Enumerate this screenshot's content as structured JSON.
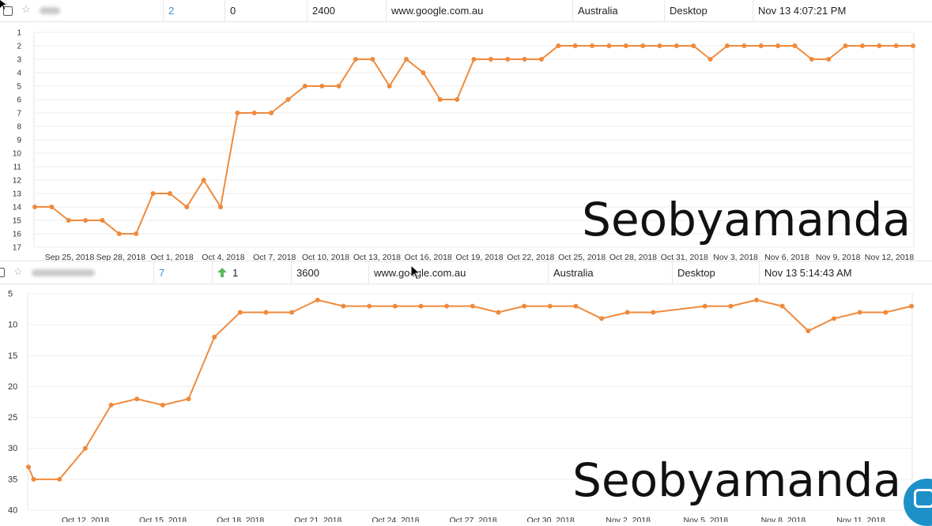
{
  "rows": [
    {
      "keyword_hidden": true,
      "rank": "2",
      "change": "0",
      "change_arrow": false,
      "search_volume": "2400",
      "search_engine": "www.google.com.au",
      "location": "Australia",
      "device": "Desktop",
      "updated": "Nov 13 4:07:21 PM"
    },
    {
      "keyword_hidden": true,
      "rank": "7",
      "change": "1",
      "change_arrow": true,
      "search_volume": "3600",
      "search_engine": "www.google.com.au",
      "location": "Australia",
      "device": "Desktop",
      "updated": "Nov 13 5:14:43 AM"
    }
  ],
  "watermark": "Seobyamanda",
  "colors": {
    "line": "#ef8a3c",
    "up_arrow": "#5cb85c",
    "rank_link": "#3a8fd6",
    "grid": "#eeeeee"
  },
  "icons": [
    "checkbox-icon",
    "star-icon",
    "up-arrow-icon",
    "mouse-cursor-icon",
    "chat-icon"
  ],
  "chart_data": [
    {
      "type": "line",
      "y_reversed": true,
      "ylim": [
        1,
        17
      ],
      "yticks": [
        1,
        2,
        3,
        4,
        5,
        6,
        7,
        8,
        9,
        10,
        11,
        12,
        13,
        14,
        15,
        16,
        17
      ],
      "x_tick_labels": [
        "Sep 25, 2018",
        "Sep 28, 2018",
        "Oct 1, 2018",
        "Oct 4, 2018",
        "Oct 7, 2018",
        "Oct 10, 2018",
        "Oct 13, 2018",
        "Oct 16, 2018",
        "Oct 19, 2018",
        "Oct 22, 2018",
        "Oct 25, 2018",
        "Oct 28, 2018",
        "Oct 31, 2018",
        "Nov 3, 2018",
        "Nov 6, 2018",
        "Nov 9, 2018",
        "Nov 12, 2018"
      ],
      "grid": true,
      "series": [
        {
          "values": [
            14,
            14,
            15,
            15,
            15,
            16,
            16,
            13,
            13,
            14,
            12,
            14,
            7,
            7,
            7,
            6,
            5,
            5,
            5,
            3,
            3,
            5,
            3,
            4,
            6,
            6,
            3,
            3,
            3,
            3,
            3,
            2,
            2,
            2,
            2,
            2,
            2,
            2,
            2,
            2,
            3,
            2,
            2,
            2,
            2,
            2,
            3,
            3,
            2,
            2,
            2,
            2,
            2
          ]
        }
      ]
    },
    {
      "type": "line",
      "y_reversed": true,
      "ylim": [
        5,
        40
      ],
      "yticks": [
        5,
        10,
        15,
        20,
        25,
        30,
        35,
        40
      ],
      "x_tick_labels": [
        "Oct 12, 2018",
        "Oct 15, 2018",
        "Oct 18, 2018",
        "Oct 21, 2018",
        "Oct 24, 2018",
        "Oct 27, 2018",
        "Oct 30, 2018",
        "Nov 2, 2018",
        "Nov 5, 2018",
        "Nov 8, 2018",
        "Nov 11, 2018"
      ],
      "grid": true,
      "series": [
        {
          "points": [
            [
              0,
              33
            ],
            [
              0.2,
              35
            ],
            [
              1.2,
              35
            ],
            [
              2.2,
              30
            ],
            [
              3.2,
              23
            ],
            [
              4.2,
              22
            ],
            [
              5.2,
              23
            ],
            [
              6.2,
              22
            ],
            [
              7.2,
              12
            ],
            [
              8.2,
              8
            ],
            [
              9.2,
              8
            ],
            [
              10.2,
              8
            ],
            [
              11.2,
              6
            ],
            [
              12.2,
              7
            ],
            [
              13.2,
              7
            ],
            [
              14.2,
              7
            ],
            [
              15.2,
              7
            ],
            [
              16.2,
              7
            ],
            [
              17.2,
              7
            ],
            [
              18.2,
              8
            ],
            [
              19.2,
              7
            ],
            [
              20.2,
              7
            ],
            [
              21.2,
              7
            ],
            [
              22.2,
              9
            ],
            [
              23.2,
              8
            ],
            [
              24.2,
              8
            ],
            [
              26.2,
              7
            ],
            [
              27.2,
              7
            ],
            [
              28.2,
              6
            ],
            [
              29.2,
              7
            ],
            [
              30.2,
              11
            ],
            [
              31.2,
              9
            ],
            [
              32.2,
              8
            ],
            [
              33.2,
              8
            ],
            [
              34.2,
              7
            ]
          ]
        }
      ]
    }
  ]
}
